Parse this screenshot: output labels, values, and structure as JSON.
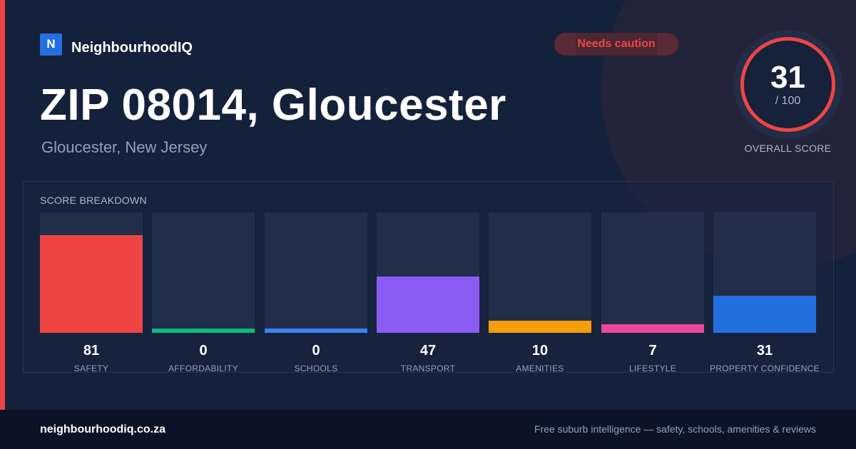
{
  "brand": {
    "logo_letter": "N",
    "name": "NeighbourhoodIQ"
  },
  "badge": {
    "label": "Needs caution",
    "color": "#ef4444"
  },
  "header": {
    "title": "ZIP 08014, Gloucester",
    "subtitle": "Gloucester, New Jersey"
  },
  "overall": {
    "value": "31",
    "max_label": "/ 100",
    "caption": "OVERALL SCORE",
    "fraction": 0.31,
    "ring_color": "#ef4444"
  },
  "breakdown": {
    "title": "SCORE BREAKDOWN",
    "items": [
      {
        "label": "SAFETY",
        "value": 81,
        "color": "#ef4444"
      },
      {
        "label": "AFFORDABILITY",
        "value": 0,
        "color": "#10b981"
      },
      {
        "label": "SCHOOLS",
        "value": 0,
        "color": "#3b82f6"
      },
      {
        "label": "TRANSPORT",
        "value": 47,
        "color": "#8b5cf6"
      },
      {
        "label": "AMENITIES",
        "value": 10,
        "color": "#f59e0b"
      },
      {
        "label": "LIFESTYLE",
        "value": 7,
        "color": "#ec4899"
      },
      {
        "label": "PROPERTY CONFIDENCE",
        "value": 31,
        "color": "#2270e0"
      }
    ]
  },
  "footer": {
    "domain": "neighbourhoodiq.co.za",
    "tagline": "Free suburb intelligence — safety, schools, amenities & reviews"
  }
}
